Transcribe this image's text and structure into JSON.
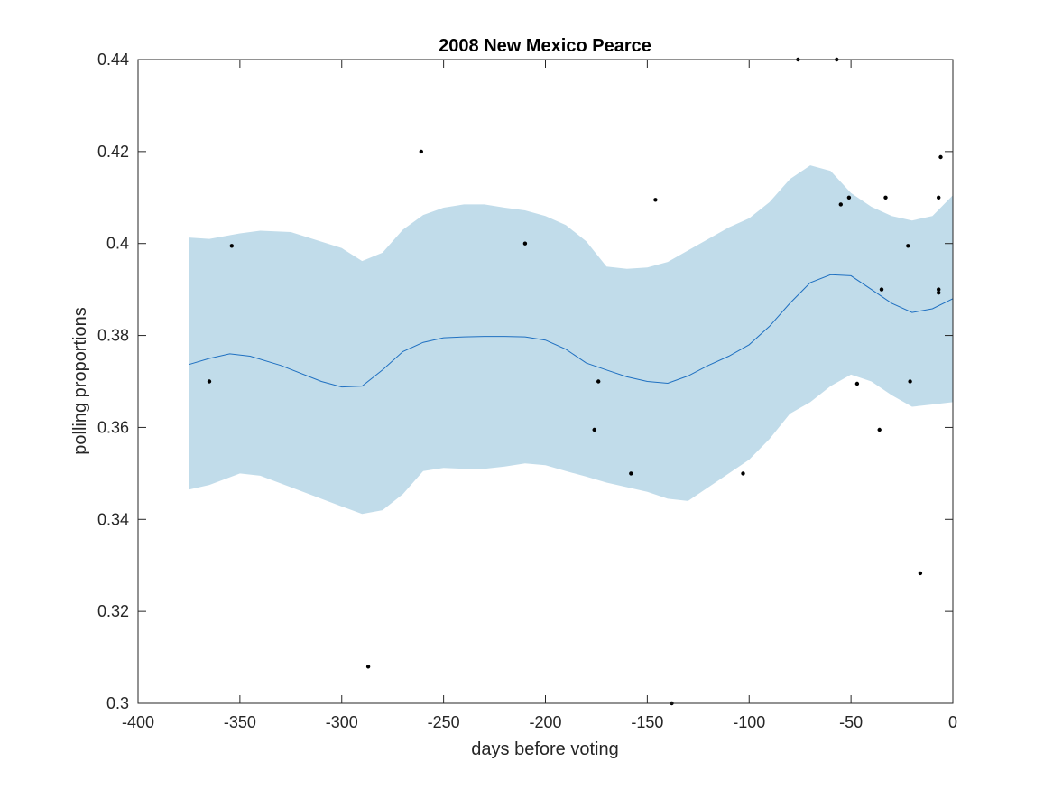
{
  "chart_data": {
    "type": "scatter",
    "title": "2008 New Mexico Pearce",
    "xlabel": "days before voting",
    "ylabel": "polling proportions",
    "xlim": [
      -400,
      0
    ],
    "ylim": [
      0.3,
      0.44
    ],
    "xticks": [
      -400,
      -350,
      -300,
      -250,
      -200,
      -150,
      -100,
      -50,
      0
    ],
    "yticks": [
      0.3,
      0.32,
      0.34,
      0.36,
      0.38,
      0.4,
      0.42,
      0.44
    ],
    "xtick_labels": [
      "-400",
      "-350",
      "-300",
      "-250",
      "-200",
      "-150",
      "-100",
      "-50",
      "0"
    ],
    "ytick_labels": [
      "0.3",
      "0.32",
      "0.34",
      "0.36",
      "0.38",
      "0.4",
      "0.42",
      "0.44"
    ],
    "grid": false,
    "colors": {
      "band": "#c1dcea",
      "trend": "#1f70c1",
      "points": "#000000",
      "axes": "#262626"
    },
    "series": [
      {
        "kind": "band",
        "x": [
          -375,
          -365,
          -350,
          -340,
          -325,
          -300,
          -290,
          -280,
          -270,
          -260,
          -250,
          -240,
          -230,
          -220,
          -210,
          -200,
          -190,
          -180,
          -170,
          -160,
          -150,
          -140,
          -130,
          -120,
          -110,
          -100,
          -90,
          -80,
          -70,
          -60,
          -50,
          -40,
          -30,
          -20,
          -10,
          0
        ],
        "upper": [
          0.4013,
          0.401,
          0.4022,
          0.4028,
          0.4025,
          0.399,
          0.3962,
          0.398,
          0.403,
          0.4062,
          0.4078,
          0.4085,
          0.4085,
          0.4078,
          0.4072,
          0.406,
          0.404,
          0.4005,
          0.395,
          0.3945,
          0.3948,
          0.396,
          0.3985,
          0.401,
          0.4035,
          0.4055,
          0.409,
          0.414,
          0.417,
          0.4158,
          0.411,
          0.408,
          0.406,
          0.405,
          0.406,
          0.4105
        ],
        "lower": [
          0.3465,
          0.3475,
          0.35,
          0.3495,
          0.347,
          0.3428,
          0.3412,
          0.342,
          0.3455,
          0.3505,
          0.3512,
          0.351,
          0.351,
          0.3515,
          0.3522,
          0.3518,
          0.3505,
          0.3493,
          0.348,
          0.347,
          0.346,
          0.3445,
          0.344,
          0.347,
          0.35,
          0.353,
          0.3575,
          0.363,
          0.3655,
          0.369,
          0.3715,
          0.37,
          0.367,
          0.3645,
          0.365,
          0.3655
        ]
      },
      {
        "kind": "line",
        "x": [
          -375,
          -365,
          -355,
          -345,
          -330,
          -310,
          -300,
          -290,
          -280,
          -270,
          -260,
          -250,
          -240,
          -230,
          -220,
          -210,
          -200,
          -190,
          -180,
          -170,
          -160,
          -150,
          -140,
          -130,
          -120,
          -110,
          -100,
          -90,
          -80,
          -70,
          -60,
          -50,
          -40,
          -30,
          -20,
          -10,
          0
        ],
        "y": [
          0.3737,
          0.375,
          0.376,
          0.3755,
          0.3735,
          0.37,
          0.3688,
          0.369,
          0.3725,
          0.3765,
          0.3785,
          0.3795,
          0.3797,
          0.3798,
          0.3798,
          0.3797,
          0.379,
          0.377,
          0.374,
          0.3725,
          0.371,
          0.37,
          0.3696,
          0.3712,
          0.3735,
          0.3755,
          0.378,
          0.382,
          0.387,
          0.3915,
          0.3932,
          0.393,
          0.39,
          0.387,
          0.385,
          0.3858,
          0.388
        ]
      },
      {
        "kind": "points",
        "x": [
          -365,
          -354,
          -287,
          -261,
          -210,
          -176,
          -174,
          -158,
          -146,
          -138,
          -103,
          -76,
          -57,
          -55,
          -51,
          -47,
          -36,
          -35,
          -33,
          -22,
          -21,
          -16,
          -7,
          -7,
          -7,
          -6
        ],
        "y": [
          0.37,
          0.3995,
          0.308,
          0.42,
          0.4,
          0.3595,
          0.37,
          0.35,
          0.4095,
          0.3,
          0.35,
          0.44,
          0.44,
          0.4085,
          0.41,
          0.3695,
          0.3595,
          0.39,
          0.41,
          0.3995,
          0.37,
          0.3283,
          0.39,
          0.3893,
          0.41,
          0.4188
        ]
      }
    ]
  }
}
